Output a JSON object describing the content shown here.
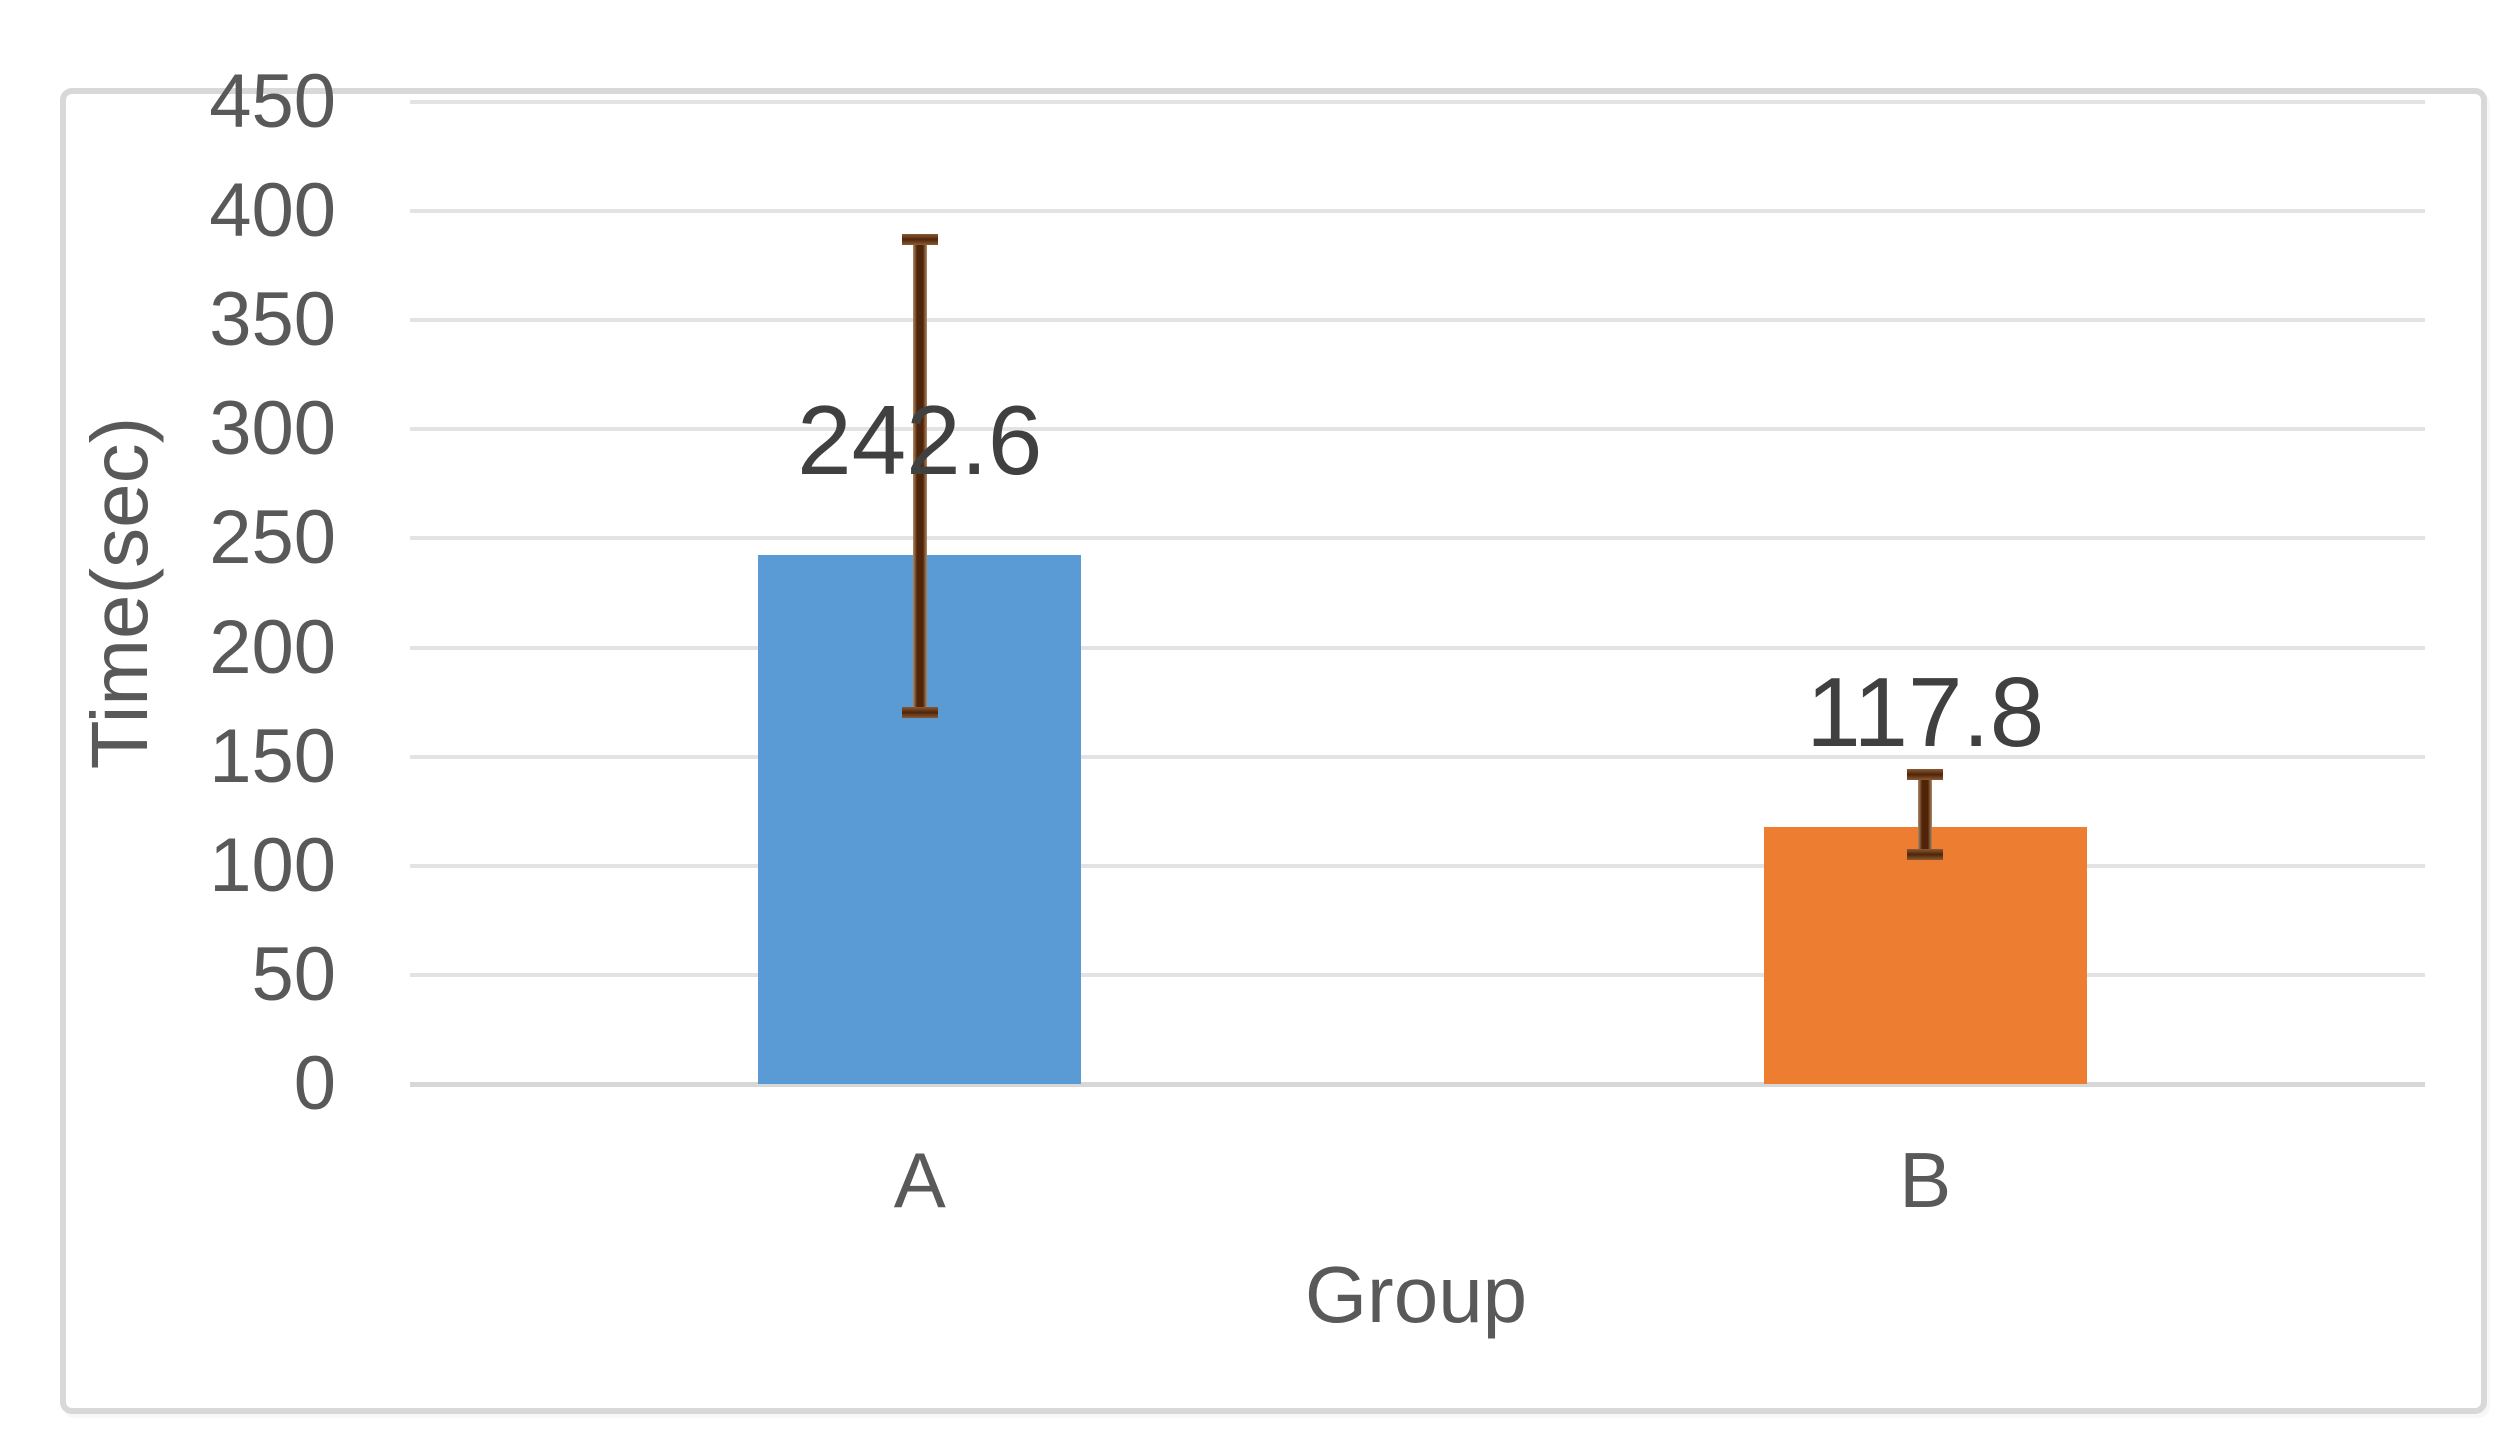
{
  "page": {
    "background": "#FFFFFF"
  },
  "chart": {
    "frame_border_color": "#D8D8D8",
    "background": "#FFFFFF"
  },
  "chart_data": {
    "type": "bar",
    "title": "",
    "categories": [
      "A",
      "B"
    ],
    "series": [
      {
        "name": "Time",
        "values": [
          242.6,
          117.8
        ],
        "data_labels": [
          "242.6",
          "117.8"
        ],
        "bar_colors": [
          "#5B9BD5",
          "#ED7D31"
        ],
        "error_bars": [
          {
            "low": 170,
            "high": 387
          },
          {
            "low": 105,
            "high": 142
          }
        ]
      }
    ],
    "xlabel": "Group",
    "ylabel": "Time(sec)",
    "ylim": [
      0,
      450
    ],
    "ytick_interval": 50,
    "yticks": [
      0,
      50,
      100,
      150,
      200,
      250,
      300,
      350,
      400,
      450
    ],
    "grid": "horizontal",
    "legend_position": "none",
    "colors": {
      "gridline": "#E3E3E3",
      "axis_line": "#D7D7D7",
      "tick_label": "#595959",
      "axis_title": "#595959",
      "category_label": "#595959",
      "data_label": "#404040",
      "error_bar_core": "#4F2409",
      "error_bar_edge": "#B08A63",
      "bar_a": "#5B9BD5",
      "bar_b": "#ED7D31"
    }
  }
}
